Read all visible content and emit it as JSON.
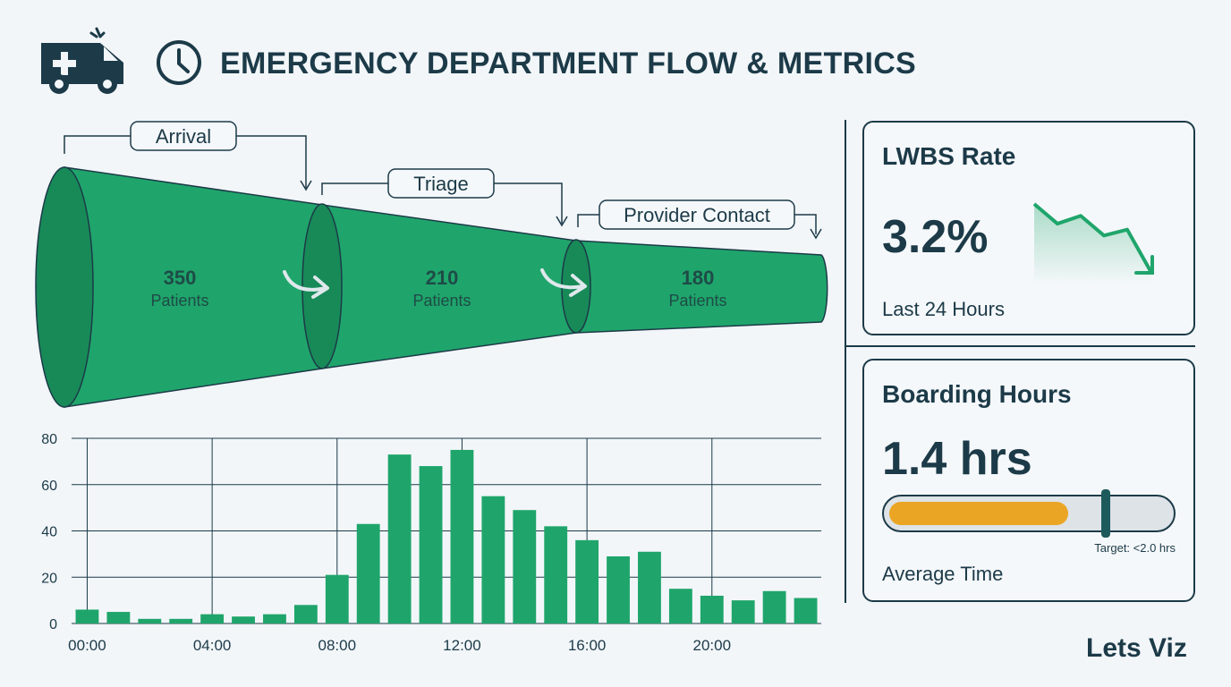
{
  "header": {
    "title": "EMERGENCY DEPARTMENT FLOW & METRICS",
    "icons": [
      "ambulance-icon",
      "clock-icon"
    ]
  },
  "funnel": {
    "stages": [
      {
        "label": "Arrival",
        "value": "350",
        "unit": "Patients"
      },
      {
        "label": "Triage",
        "value": "210",
        "unit": "Patients"
      },
      {
        "label": "Provider Contact",
        "value": "180",
        "unit": "Patients"
      }
    ]
  },
  "chart_data": {
    "type": "bar",
    "x": [
      0,
      1,
      2,
      3,
      4,
      5,
      6,
      7,
      8,
      9,
      10,
      11,
      12,
      13,
      14,
      15,
      16,
      17,
      18,
      19,
      20,
      21,
      22,
      23
    ],
    "x_tick_labels": [
      "00:00",
      "04:00",
      "08:00",
      "12:00",
      "16:00",
      "20:00"
    ],
    "x_tick_positions": [
      0,
      4,
      8,
      12,
      16,
      20
    ],
    "values": [
      6,
      5,
      2,
      2,
      4,
      3,
      4,
      8,
      21,
      43,
      73,
      68,
      75,
      55,
      49,
      42,
      36,
      29,
      31,
      15,
      12,
      10,
      14,
      11
    ],
    "y_ticks": [
      0,
      20,
      40,
      60,
      80
    ],
    "ylim": [
      0,
      80
    ],
    "grid": true,
    "bar_color": "#1fa56b"
  },
  "lwbs": {
    "title": "LWBS Rate",
    "value": "3.2%",
    "subtitle": "Last 24 Hours",
    "trend": [
      10,
      30,
      22,
      42,
      36,
      78
    ]
  },
  "boarding": {
    "title": "Boarding Hours",
    "value": "1.4 hrs",
    "subtitle": "Average Time",
    "target_label": "Target: <2.0 hrs",
    "progress_fraction": 0.64,
    "target_fraction": 0.76
  },
  "brand": "Lets Viz",
  "colors": {
    "primary": "#1fa56b",
    "primary_dark": "#178a58",
    "ink": "#1c3a48",
    "accent": "#eba524",
    "background": "#f2f6f9"
  }
}
